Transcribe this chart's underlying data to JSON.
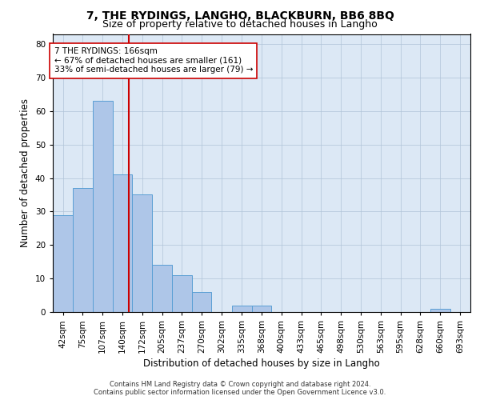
{
  "title": "7, THE RYDINGS, LANGHO, BLACKBURN, BB6 8BQ",
  "subtitle": "Size of property relative to detached houses in Langho",
  "xlabel": "Distribution of detached houses by size in Langho",
  "ylabel": "Number of detached properties",
  "bar_labels": [
    "42sqm",
    "75sqm",
    "107sqm",
    "140sqm",
    "172sqm",
    "205sqm",
    "237sqm",
    "270sqm",
    "302sqm",
    "335sqm",
    "368sqm",
    "400sqm",
    "433sqm",
    "465sqm",
    "498sqm",
    "530sqm",
    "563sqm",
    "595sqm",
    "628sqm",
    "660sqm",
    "693sqm"
  ],
  "bar_values": [
    29,
    37,
    63,
    41,
    35,
    14,
    11,
    6,
    0,
    2,
    2,
    0,
    0,
    0,
    0,
    0,
    0,
    0,
    0,
    1,
    0
  ],
  "bar_color": "#aec6e8",
  "bar_edge_color": "#5a9fd4",
  "property_line_x": 166,
  "bin_edges": [
    42,
    75,
    107,
    140,
    172,
    205,
    237,
    270,
    302,
    335,
    368,
    400,
    433,
    465,
    498,
    530,
    563,
    595,
    628,
    660,
    693,
    726
  ],
  "vline_color": "#cc0000",
  "annotation_text": "7 THE RYDINGS: 166sqm\n← 67% of detached houses are smaller (161)\n33% of semi-detached houses are larger (79) →",
  "annotation_box_color": "#ffffff",
  "annotation_box_edge": "#cc0000",
  "ylim": [
    0,
    83
  ],
  "yticks": [
    0,
    10,
    20,
    30,
    40,
    50,
    60,
    70,
    80
  ],
  "footer_line1": "Contains HM Land Registry data © Crown copyright and database right 2024.",
  "footer_line2": "Contains public sector information licensed under the Open Government Licence v3.0.",
  "title_fontsize": 10,
  "subtitle_fontsize": 9,
  "xlabel_fontsize": 8.5,
  "ylabel_fontsize": 8.5,
  "tick_fontsize": 7.5,
  "annotation_fontsize": 7.5,
  "footer_fontsize": 6.0
}
